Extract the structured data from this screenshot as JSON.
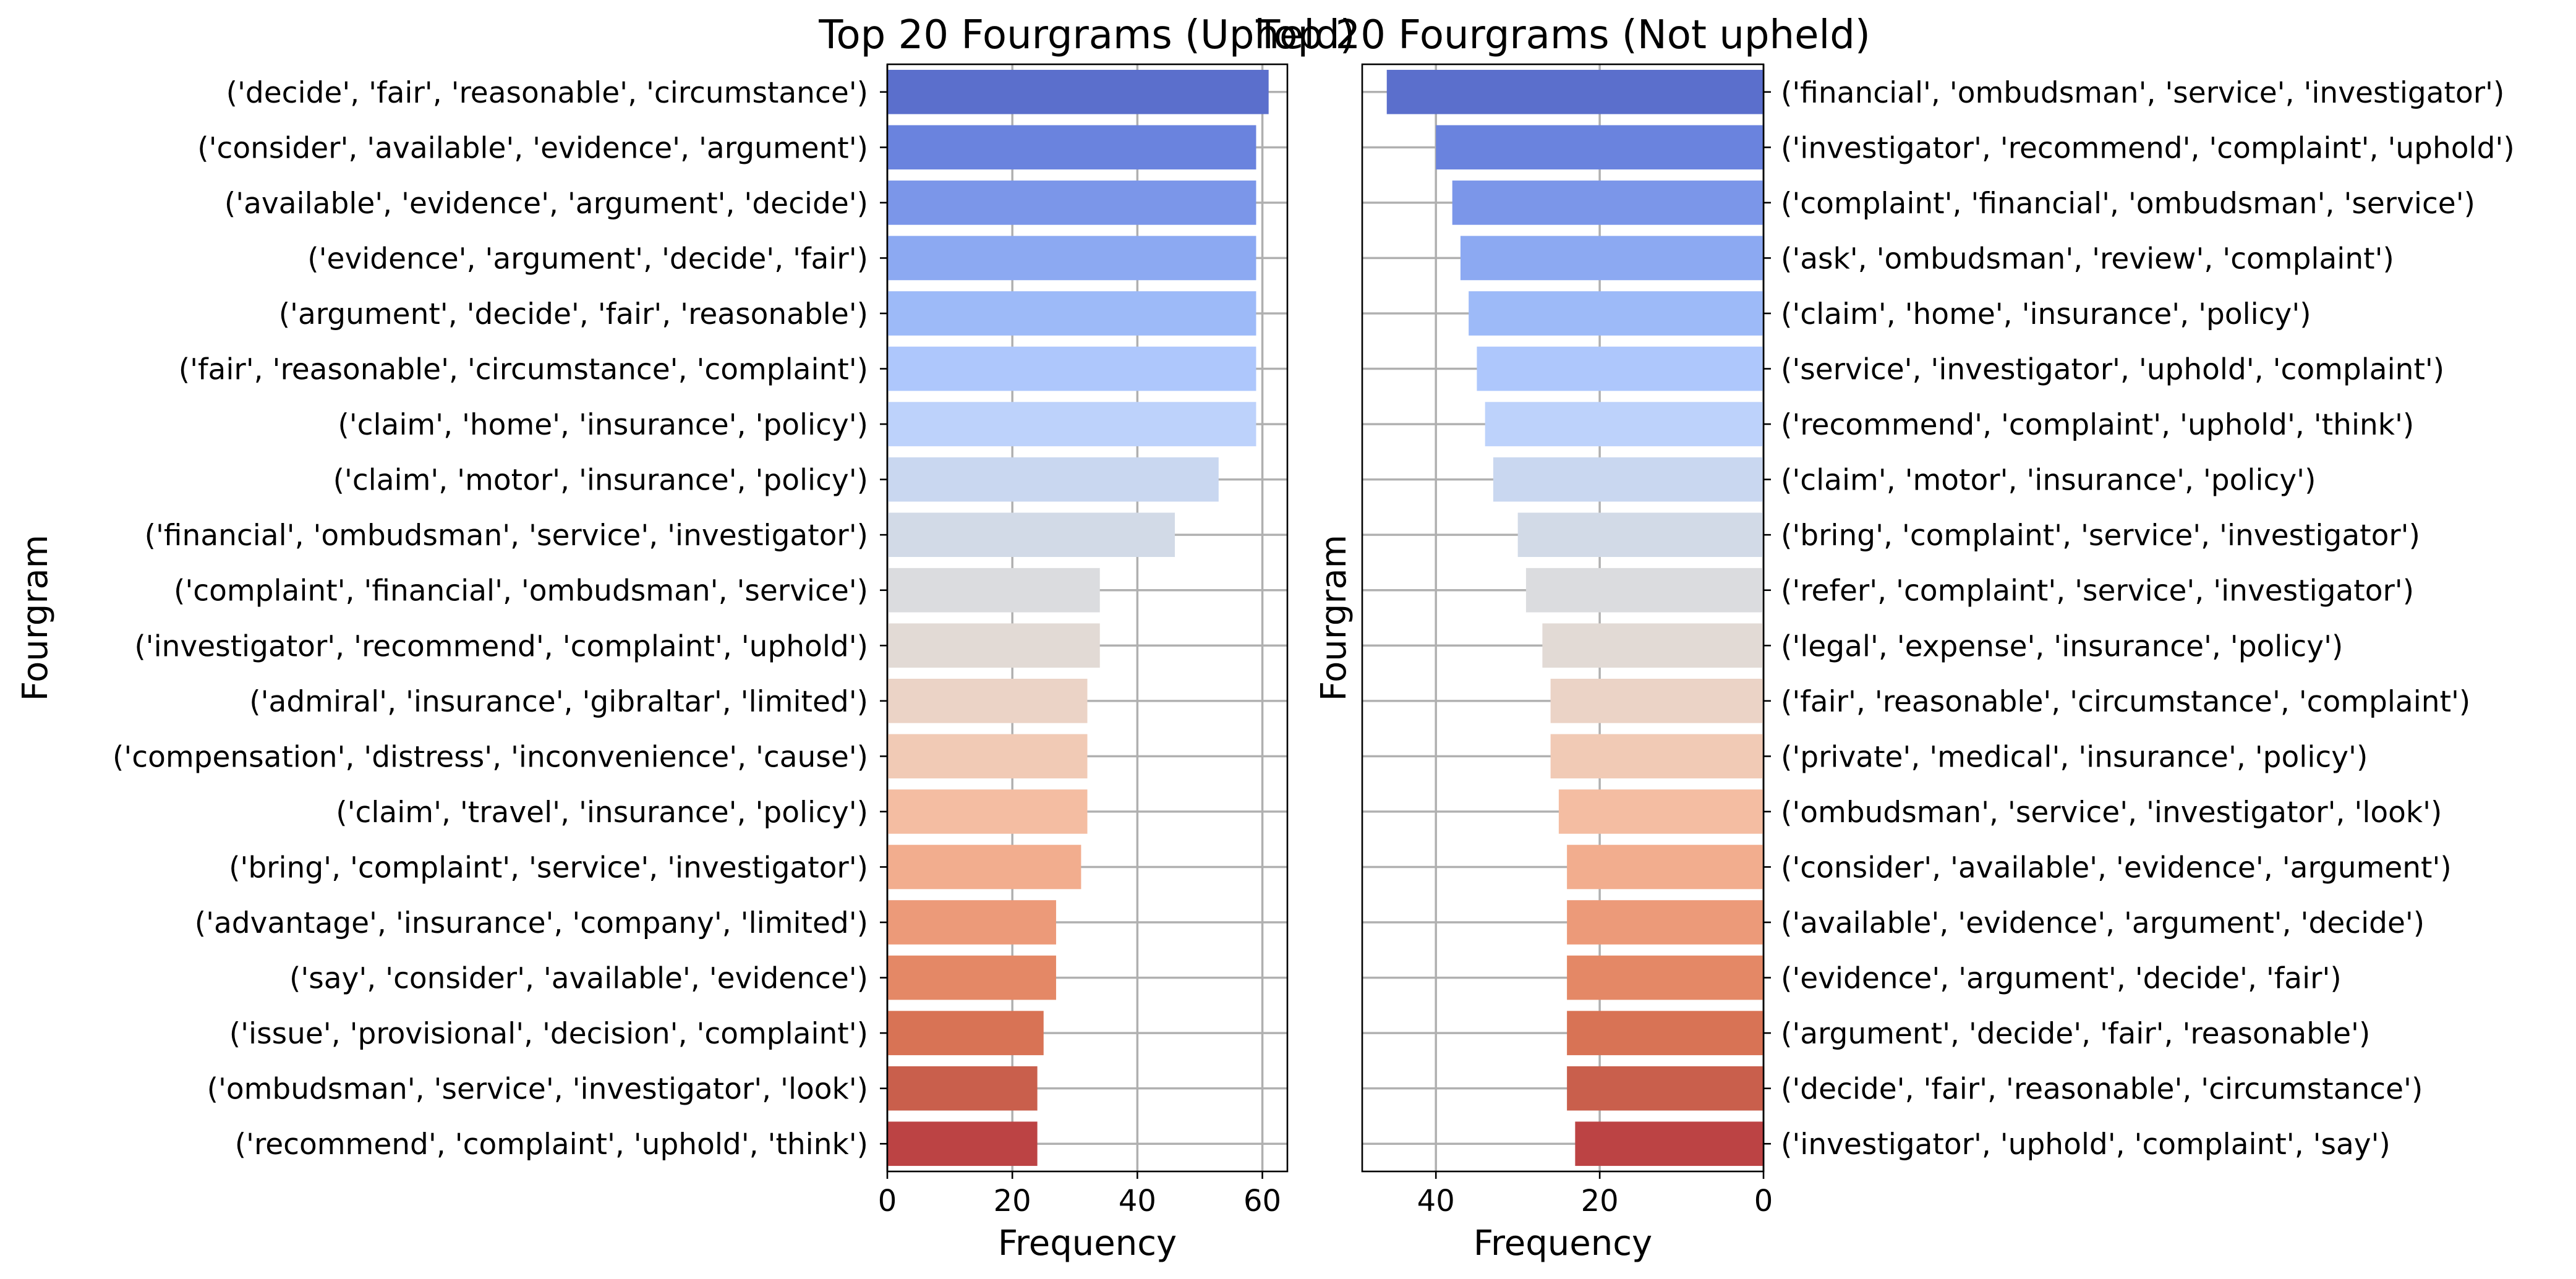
{
  "chart_data": [
    {
      "type": "bar",
      "orientation": "horizontal",
      "title": "Top 20 Fourgrams (Upheld)",
      "xlabel": "Frequency",
      "ylabel": "Fourgram",
      "xlim": [
        0,
        64
      ],
      "xticks": [
        "0",
        "20",
        "40",
        "60"
      ],
      "x_direction": "normal",
      "grid": true,
      "category_labels_side": "left",
      "colormap": "coolwarm",
      "categories": [
        "('decide', 'fair', 'reasonable', 'circumstance')",
        "('consider', 'available', 'evidence', 'argument')",
        "('available', 'evidence', 'argument', 'decide')",
        "('evidence', 'argument', 'decide', 'fair')",
        "('argument', 'decide', 'fair', 'reasonable')",
        "('fair', 'reasonable', 'circumstance', 'complaint')",
        "('claim', 'home', 'insurance', 'policy')",
        "('claim', 'motor', 'insurance', 'policy')",
        "('financial', 'ombudsman', 'service', 'investigator')",
        "('complaint', 'financial', 'ombudsman', 'service')",
        "('investigator', 'recommend', 'complaint', 'uphold')",
        "('admiral', 'insurance', 'gibraltar', 'limited')",
        "('compensation', 'distress', 'inconvenience', 'cause')",
        "('claim', 'travel', 'insurance', 'policy')",
        "('bring', 'complaint', 'service', 'investigator')",
        "('advantage', 'insurance', 'company', 'limited')",
        "('say', 'consider', 'available', 'evidence')",
        "('issue', 'provisional', 'decision', 'complaint')",
        "('ombudsman', 'service', 'investigator', 'look')",
        "('recommend', 'complaint', 'uphold', 'think')"
      ],
      "values": [
        61,
        59,
        59,
        59,
        59,
        59,
        59,
        53,
        46,
        34,
        34,
        32,
        32,
        32,
        31,
        27,
        27,
        25,
        24,
        24
      ],
      "colors": [
        "#5b6fcc",
        "#6a83de",
        "#7b96e9",
        "#8ca9f2",
        "#9dbaf8",
        "#aec7fc",
        "#bdd2fb",
        "#c9d7f0",
        "#d2dae7",
        "#dbdcdf",
        "#e2dad5",
        "#ebd3c6",
        "#f1cab5",
        "#f4bda2",
        "#f2ad8e",
        "#ec9a79",
        "#e48866",
        "#d87355",
        "#c95f4c",
        "#bc4344"
      ]
    },
    {
      "type": "bar",
      "orientation": "horizontal",
      "title": "Top 20 Fourgrams (Not upheld)",
      "xlabel": "Frequency",
      "ylabel": "Fourgram",
      "xlim": [
        49,
        0
      ],
      "xticks": [
        "40",
        "20",
        "0"
      ],
      "x_direction": "reversed",
      "grid": true,
      "category_labels_side": "right",
      "colormap": "coolwarm",
      "categories": [
        "('financial', 'ombudsman', 'service', 'investigator')",
        "('investigator', 'recommend', 'complaint', 'uphold')",
        "('complaint', 'financial', 'ombudsman', 'service')",
        "('ask', 'ombudsman', 'review', 'complaint')",
        "('claim', 'home', 'insurance', 'policy')",
        "('service', 'investigator', 'uphold', 'complaint')",
        "('recommend', 'complaint', 'uphold', 'think')",
        "('claim', 'motor', 'insurance', 'policy')",
        "('bring', 'complaint', 'service', 'investigator')",
        "('refer', 'complaint', 'service', 'investigator')",
        "('legal', 'expense', 'insurance', 'policy')",
        "('fair', 'reasonable', 'circumstance', 'complaint')",
        "('private', 'medical', 'insurance', 'policy')",
        "('ombudsman', 'service', 'investigator', 'look')",
        "('consider', 'available', 'evidence', 'argument')",
        "('available', 'evidence', 'argument', 'decide')",
        "('evidence', 'argument', 'decide', 'fair')",
        "('argument', 'decide', 'fair', 'reasonable')",
        "('decide', 'fair', 'reasonable', 'circumstance')",
        "('investigator', 'uphold', 'complaint', 'say')"
      ],
      "values": [
        46,
        40,
        38,
        37,
        36,
        35,
        34,
        33,
        30,
        29,
        27,
        26,
        26,
        25,
        24,
        24,
        24,
        24,
        24,
        23
      ],
      "colors": [
        "#5b6fcc",
        "#6a83de",
        "#7b96e9",
        "#8ca9f2",
        "#9dbaf8",
        "#aec7fc",
        "#bdd2fb",
        "#c9d7f0",
        "#d2dae7",
        "#dbdcdf",
        "#e2dad5",
        "#ebd3c6",
        "#f1cab5",
        "#f4bda2",
        "#f2ad8e",
        "#ec9a79",
        "#e48866",
        "#d87355",
        "#c95f4c",
        "#bc4344"
      ]
    }
  ]
}
